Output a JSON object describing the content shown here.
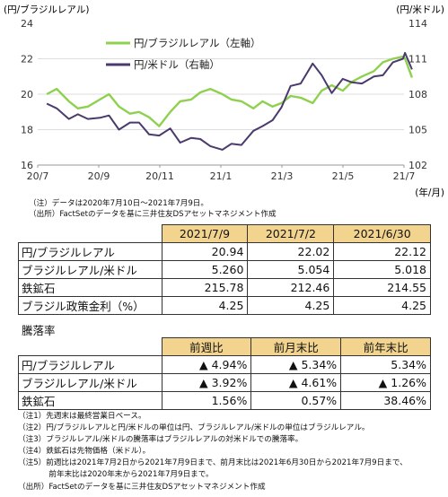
{
  "chart_data": {
    "type": "line",
    "left_axis_unit": "(円/ブラジルレアル)",
    "right_axis_unit": "(円/米ドル)",
    "x_unit": "(年/月)",
    "x_ticks": [
      "20/7",
      "20/9",
      "20/11",
      "21/1",
      "21/3",
      "21/5",
      "21/7"
    ],
    "y_left_ticks": [
      "24",
      "22",
      "20",
      "18",
      "16"
    ],
    "y_right_ticks": [
      "114",
      "111",
      "108",
      "105",
      "102"
    ],
    "ylim_left": [
      16,
      24
    ],
    "ylim_right": [
      102,
      114
    ],
    "legend": "top-left",
    "series": [
      {
        "name": "円/ブラジルレアル（左軸）",
        "axis": "left",
        "color": "#8fd14f",
        "x": [
          "2020-07-10",
          "2020-07-20",
          "2020-08-01",
          "2020-08-10",
          "2020-08-20",
          "2020-09-01",
          "2020-09-10",
          "2020-09-20",
          "2020-10-01",
          "2020-10-10",
          "2020-10-20",
          "2020-10-30",
          "2020-11-10",
          "2020-11-20",
          "2020-12-01",
          "2020-12-10",
          "2020-12-20",
          "2021-01-01",
          "2021-01-10",
          "2021-01-20",
          "2021-02-01",
          "2021-02-10",
          "2021-02-20",
          "2021-03-01",
          "2021-03-10",
          "2021-03-20",
          "2021-04-01",
          "2021-04-10",
          "2021-04-20",
          "2021-05-01",
          "2021-05-10",
          "2021-05-20",
          "2021-06-01",
          "2021-06-10",
          "2021-06-20",
          "2021-06-30",
          "2021-07-02",
          "2021-07-09"
        ],
        "values": [
          20.0,
          20.3,
          19.6,
          19.2,
          19.3,
          19.7,
          20.0,
          19.3,
          18.9,
          19.0,
          18.7,
          18.2,
          19.0,
          19.6,
          19.7,
          20.1,
          20.3,
          20.0,
          19.7,
          19.6,
          19.2,
          19.6,
          19.3,
          19.5,
          19.9,
          19.8,
          19.5,
          20.2,
          20.5,
          20.2,
          20.7,
          21.0,
          21.3,
          21.8,
          22.0,
          22.12,
          22.02,
          20.94
        ]
      },
      {
        "name": "円/米ドル（右軸）",
        "axis": "right",
        "color": "#4b3a6e",
        "x": [
          "2020-07-10",
          "2020-07-20",
          "2020-08-01",
          "2020-08-10",
          "2020-08-20",
          "2020-09-01",
          "2020-09-10",
          "2020-09-20",
          "2020-10-01",
          "2020-10-10",
          "2020-10-20",
          "2020-10-30",
          "2020-11-10",
          "2020-11-20",
          "2020-12-01",
          "2020-12-10",
          "2020-12-20",
          "2021-01-01",
          "2021-01-10",
          "2021-01-20",
          "2021-02-01",
          "2021-02-10",
          "2021-02-20",
          "2021-03-01",
          "2021-03-10",
          "2021-03-20",
          "2021-04-01",
          "2021-04-10",
          "2021-04-20",
          "2021-05-01",
          "2021-05-10",
          "2021-05-20",
          "2021-06-01",
          "2021-06-10",
          "2021-06-20",
          "2021-06-30",
          "2021-07-02",
          "2021-07-09"
        ],
        "values": [
          107.2,
          106.8,
          105.9,
          106.3,
          105.9,
          106.0,
          106.2,
          105.0,
          105.6,
          105.6,
          104.6,
          104.5,
          105.1,
          103.9,
          104.3,
          104.2,
          103.6,
          103.3,
          103.8,
          103.7,
          104.9,
          105.3,
          105.8,
          106.9,
          108.7,
          108.9,
          110.6,
          109.6,
          108.1,
          109.3,
          109.0,
          108.9,
          109.5,
          109.6,
          110.7,
          111.0,
          111.5,
          110.1
        ]
      }
    ]
  },
  "notes_top": [
    "（注）データは2020年7月10日～2021年7月9日。",
    "（出所）FactSetのデータを基に三井住友DSアセットマネジメント作成"
  ],
  "table1": {
    "headers": [
      "2021/7/9",
      "2021/7/2",
      "2021/6/30"
    ],
    "rows": [
      {
        "label": "円/ブラジルレアル",
        "values": [
          "20.94",
          "22.02",
          "22.12"
        ]
      },
      {
        "label": "ブラジルレアル/米ドル",
        "values": [
          "5.260",
          "5.054",
          "5.018"
        ]
      },
      {
        "label": "鉄鉱石",
        "values": [
          "215.78",
          "212.46",
          "214.55"
        ]
      },
      {
        "label": "ブラジル政策金利（%）",
        "values": [
          "4.25",
          "4.25",
          "4.25"
        ]
      }
    ]
  },
  "section_title": "騰落率",
  "table2": {
    "headers": [
      "前週比",
      "前月末比",
      "前年末比"
    ],
    "rows": [
      {
        "label": "円/ブラジルレアル",
        "values": [
          {
            "tri": "▲",
            "v": "4.94%"
          },
          {
            "tri": "▲",
            "v": "5.34%"
          },
          {
            "tri": "",
            "v": "5.34%"
          }
        ]
      },
      {
        "label": "ブラジルレアル/米ドル",
        "values": [
          {
            "tri": "▲",
            "v": "3.92%"
          },
          {
            "tri": "▲",
            "v": "4.61%"
          },
          {
            "tri": "▲",
            "v": "1.26%"
          }
        ]
      },
      {
        "label": "鉄鉱石",
        "values": [
          {
            "tri": "",
            "v": "1.56%"
          },
          {
            "tri": "",
            "v": "0.57%"
          },
          {
            "tri": "",
            "v": "38.46%"
          }
        ]
      }
    ]
  },
  "notes_bottom": [
    "（注1）先週末は最終営業日ベース。",
    "（注2）円/ブラジルレアルと円/米ドルの単位は円、ブラジルレアル/米ドルの単位はブラジルレアル。",
    "（注3）ブラジルレアル/米ドルの騰落率はブラジルレアルの対米ドルでの騰落率。",
    "（注4）鉄鉱石は先物価格（米ドル）。",
    "（注5）前週比は2021年7月2日から2021年7月9日まで、前月末比は2021年6月30日から2021年7月9日まで、",
    "　　　　前年末比は2020年末から2021年7月9日まで。",
    "（出所）FactSetのデータを基に三井住友DSアセットマネジメント作成"
  ]
}
